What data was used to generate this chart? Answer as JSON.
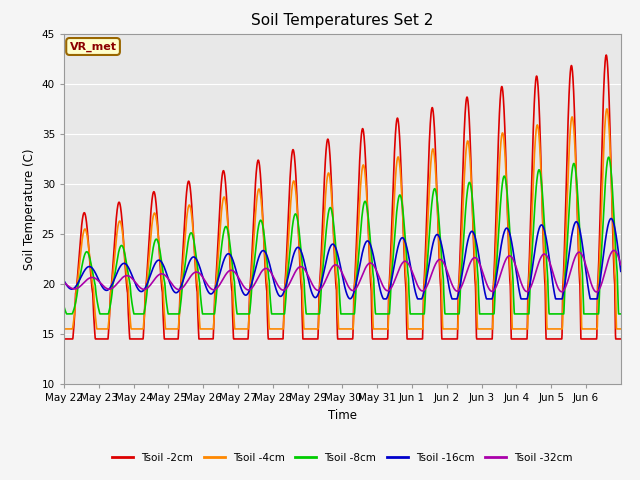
{
  "title": "Soil Temperatures Set 2",
  "xlabel": "Time",
  "ylabel": "Soil Temperature (C)",
  "ylim": [
    10,
    45
  ],
  "yticks": [
    10,
    15,
    20,
    25,
    30,
    35,
    40,
    45
  ],
  "fig_bg_color": "#f5f5f5",
  "plot_bg_color": "#e8e8e8",
  "series": {
    "Tsoil -2cm": {
      "color": "#dd0000",
      "lw": 1.2
    },
    "Tsoil -4cm": {
      "color": "#ff8800",
      "lw": 1.2
    },
    "Tsoil -8cm": {
      "color": "#00cc00",
      "lw": 1.2
    },
    "Tsoil -16cm": {
      "color": "#0000cc",
      "lw": 1.2
    },
    "Tsoil -32cm": {
      "color": "#aa00aa",
      "lw": 1.2
    }
  },
  "annotation_text": "VR_met",
  "annotation_color": "#8B0000",
  "x_tick_labels": [
    "May 22",
    "May 23",
    "May 24",
    "May 25",
    "May 26",
    "May 27",
    "May 28",
    "May 29",
    "May 30",
    "May 31",
    "Jun 1",
    "Jun 2",
    "Jun 3",
    "Jun 4",
    "Jun 5",
    "Jun 6"
  ],
  "n_days": 16,
  "points_per_day": 144
}
